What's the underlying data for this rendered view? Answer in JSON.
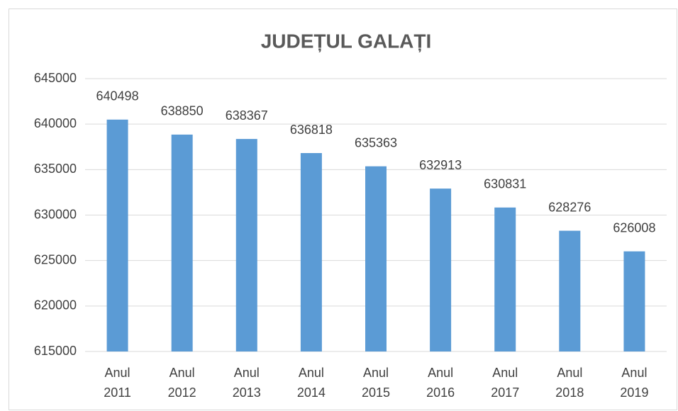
{
  "chart_data": {
    "type": "bar",
    "title": "JUDEȚUL GALAȚI",
    "categories": [
      "Anul 2011",
      "Anul 2012",
      "Anul 2013",
      "Anul 2014",
      "Anul 2015",
      "Anul 2016",
      "Anul 2017",
      "Anul 2018",
      "Anul 2019"
    ],
    "values": [
      640498,
      638850,
      638367,
      636818,
      635363,
      632913,
      630831,
      628276,
      626008
    ],
    "color": "#5b9bd5",
    "ylim": [
      615000,
      645000
    ],
    "yticks": [
      615000,
      620000,
      625000,
      630000,
      635000,
      640000,
      645000
    ],
    "grid": true
  }
}
